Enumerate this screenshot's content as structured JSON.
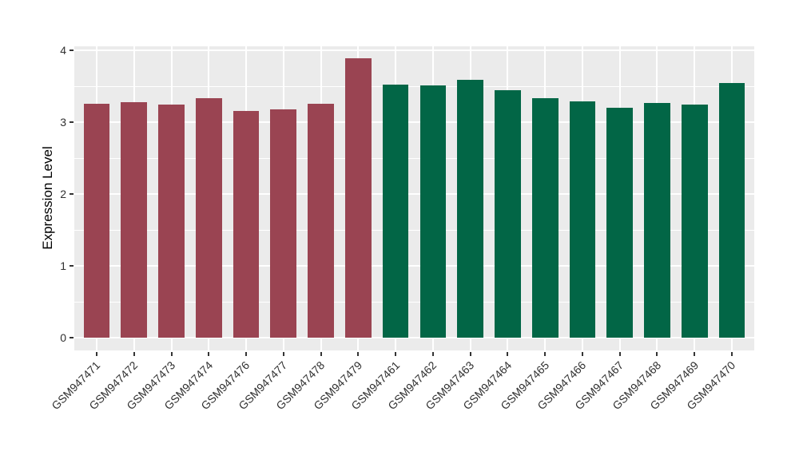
{
  "chart_data": {
    "type": "bar",
    "title": "",
    "xlabel": "",
    "ylabel": "Expression Level",
    "ylim": [
      0,
      4
    ],
    "y_major_ticks": [
      0,
      1,
      2,
      3,
      4
    ],
    "y_minor_gridlines": [
      0.5,
      1.5,
      2.5,
      3.5
    ],
    "legend": "none",
    "grid": "on",
    "plot_background_color": "#EBEBEB",
    "gridline_color": "#FFFFFF",
    "axis_text_color": "#303030",
    "group_colors": {
      "left_group": "#9A4452",
      "right_group": "#026646"
    },
    "bars": [
      {
        "label": "GSM947471",
        "value": 3.26,
        "color": "#9A4452"
      },
      {
        "label": "GSM947472",
        "value": 3.28,
        "color": "#9A4452"
      },
      {
        "label": "GSM947473",
        "value": 3.25,
        "color": "#9A4452"
      },
      {
        "label": "GSM947474",
        "value": 3.33,
        "color": "#9A4452"
      },
      {
        "label": "GSM947476",
        "value": 3.16,
        "color": "#9A4452"
      },
      {
        "label": "GSM947477",
        "value": 3.18,
        "color": "#9A4452"
      },
      {
        "label": "GSM947478",
        "value": 3.26,
        "color": "#9A4452"
      },
      {
        "label": "GSM947479",
        "value": 3.89,
        "color": "#9A4452"
      },
      {
        "label": "GSM947461",
        "value": 3.52,
        "color": "#026646"
      },
      {
        "label": "GSM947462",
        "value": 3.51,
        "color": "#026646"
      },
      {
        "label": "GSM947463",
        "value": 3.59,
        "color": "#026646"
      },
      {
        "label": "GSM947464",
        "value": 3.45,
        "color": "#026646"
      },
      {
        "label": "GSM947465",
        "value": 3.33,
        "color": "#026646"
      },
      {
        "label": "GSM947466",
        "value": 3.29,
        "color": "#026646"
      },
      {
        "label": "GSM947467",
        "value": 3.2,
        "color": "#026646"
      },
      {
        "label": "GSM947468",
        "value": 3.27,
        "color": "#026646"
      },
      {
        "label": "GSM947469",
        "value": 3.25,
        "color": "#026646"
      },
      {
        "label": "GSM947470",
        "value": 3.54,
        "color": "#026646"
      }
    ]
  }
}
